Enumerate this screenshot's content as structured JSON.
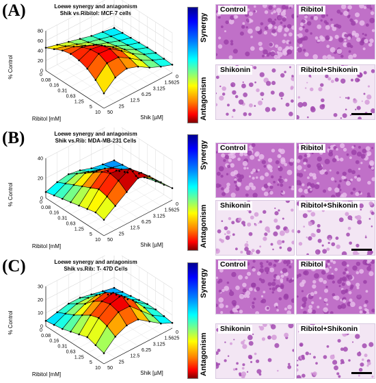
{
  "panels": [
    {
      "label": "(A)",
      "title_line1": "Loewe synergy and antagonism",
      "title_line2": "Shik vs.Ribitol: MCF-7 cells",
      "zlabel": "% Control",
      "xlabel": "Ribitol [mM]",
      "ylabel": "Shik [µM]",
      "colorbar": {
        "top": "Synergy",
        "bottom": "Antagonism"
      },
      "images": [
        "Control",
        "Ribitol",
        "Shikonin",
        "Ribitol+Shikonin"
      ]
    },
    {
      "label": "(B)",
      "title_line1": "Loewe synergy and antagonism",
      "title_line2": "Shik vs.Rib: MDA-MB-231 Cells",
      "zlabel": "% Control",
      "xlabel": "Ribitol [mM]",
      "ylabel": "Shik [µM]",
      "colorbar": {
        "top": "Synergy",
        "bottom": "Antagonism"
      },
      "images": [
        "Control",
        "Ribitol",
        "Shikonin",
        "Ribitol+Shikonin"
      ]
    },
    {
      "label": "(C)",
      "title_line1": "Loewe synergy and antagonism",
      "title_line2": "Shik vs.Rib: T- 47D Cells",
      "zlabel": "% Control",
      "xlabel": "Ribitol [mM]",
      "ylabel": "Shik [µM]",
      "colorbar": {
        "top": "Synergy",
        "bottom": "Antagonism"
      },
      "images": [
        "Control",
        "Ribitol",
        "Shikonin",
        "Ribitol+Shikonin"
      ]
    }
  ],
  "chart_data": [
    {
      "type": "surface",
      "title": "Loewe synergy and antagonism Shik vs.Ribitol: MCF-7 cells",
      "x_ticks": [
        "0",
        "0.08",
        "0.16",
        "0.31",
        "0.63",
        "1.25",
        "5",
        "10"
      ],
      "y_ticks": [
        "0",
        "1.5625",
        "3.125",
        "6.25",
        "12.5",
        "25",
        "50"
      ],
      "z_ticks": [
        "0",
        "20",
        "40",
        "60",
        "80"
      ],
      "zlim": [
        0,
        80
      ],
      "xlabel": "Ribitol [mM]",
      "ylabel": "Shik [µM]",
      "zlabel": "% Control",
      "z": [
        [
          14,
          18,
          22,
          28,
          34,
          40,
          46
        ],
        [
          15,
          20,
          26,
          32,
          40,
          48,
          54
        ],
        [
          16,
          22,
          30,
          38,
          48,
          58,
          62
        ],
        [
          17,
          24,
          34,
          46,
          60,
          68,
          66
        ],
        [
          18,
          26,
          38,
          54,
          70,
          74,
          64
        ],
        [
          18,
          27,
          40,
          58,
          74,
          76,
          58
        ],
        [
          17,
          26,
          38,
          54,
          68,
          68,
          46
        ],
        [
          16,
          24,
          34,
          48,
          56,
          50,
          30
        ]
      ]
    },
    {
      "type": "surface",
      "title": "Loewe synergy and antagonism Shik vs.Rib: MDA-MB-231 Cells",
      "x_ticks": [
        "0",
        "0.08",
        "0.16",
        "0.31",
        "0.63",
        "1.25",
        "5",
        "10"
      ],
      "y_ticks": [
        "0",
        "1.5625",
        "3.125",
        "6.25",
        "12.5",
        "25",
        "50"
      ],
      "z_ticks": [
        "0",
        "20",
        "40"
      ],
      "zlim": [
        0,
        40
      ],
      "xlabel": "Ribitol [mM]",
      "ylabel": "Shik [µM]",
      "zlabel": "% Control",
      "z": [
        [
          2,
          4,
          6,
          10,
          12,
          10,
          6
        ],
        [
          3,
          6,
          10,
          14,
          18,
          14,
          8
        ],
        [
          4,
          8,
          14,
          20,
          24,
          18,
          10
        ],
        [
          5,
          12,
          20,
          28,
          30,
          22,
          12
        ],
        [
          6,
          14,
          24,
          34,
          36,
          26,
          14
        ],
        [
          8,
          18,
          30,
          38,
          40,
          30,
          16
        ],
        [
          10,
          22,
          34,
          44,
          38,
          28,
          18
        ],
        [
          12,
          24,
          36,
          40,
          32,
          24,
          16
        ]
      ]
    },
    {
      "type": "surface",
      "title": "Loewe synergy and antagonism Shik vs.Rib: T- 47D Cells",
      "x_ticks": [
        "0",
        "0.08",
        "0.16",
        "0.31",
        "0.63",
        "1.25",
        "5",
        "10"
      ],
      "y_ticks": [
        "0",
        "1.5625",
        "3.125",
        "6.25",
        "12.5",
        "25",
        "50"
      ],
      "z_ticks": [
        "0",
        "10",
        "20",
        "30"
      ],
      "zlim": [
        0,
        30
      ],
      "xlabel": "Ribitol [mM]",
      "ylabel": "Shik [µM]",
      "zlabel": "% Control",
      "z": [
        [
          2,
          4,
          6,
          8,
          8,
          6,
          4
        ],
        [
          3,
          6,
          10,
          12,
          12,
          9,
          5
        ],
        [
          4,
          8,
          14,
          18,
          16,
          12,
          6
        ],
        [
          5,
          10,
          18,
          24,
          22,
          16,
          8
        ],
        [
          6,
          12,
          20,
          28,
          26,
          20,
          10
        ],
        [
          6,
          12,
          22,
          30,
          28,
          22,
          12
        ],
        [
          5,
          10,
          18,
          26,
          26,
          20,
          10
        ],
        [
          4,
          8,
          14,
          20,
          20,
          16,
          8
        ]
      ]
    }
  ]
}
